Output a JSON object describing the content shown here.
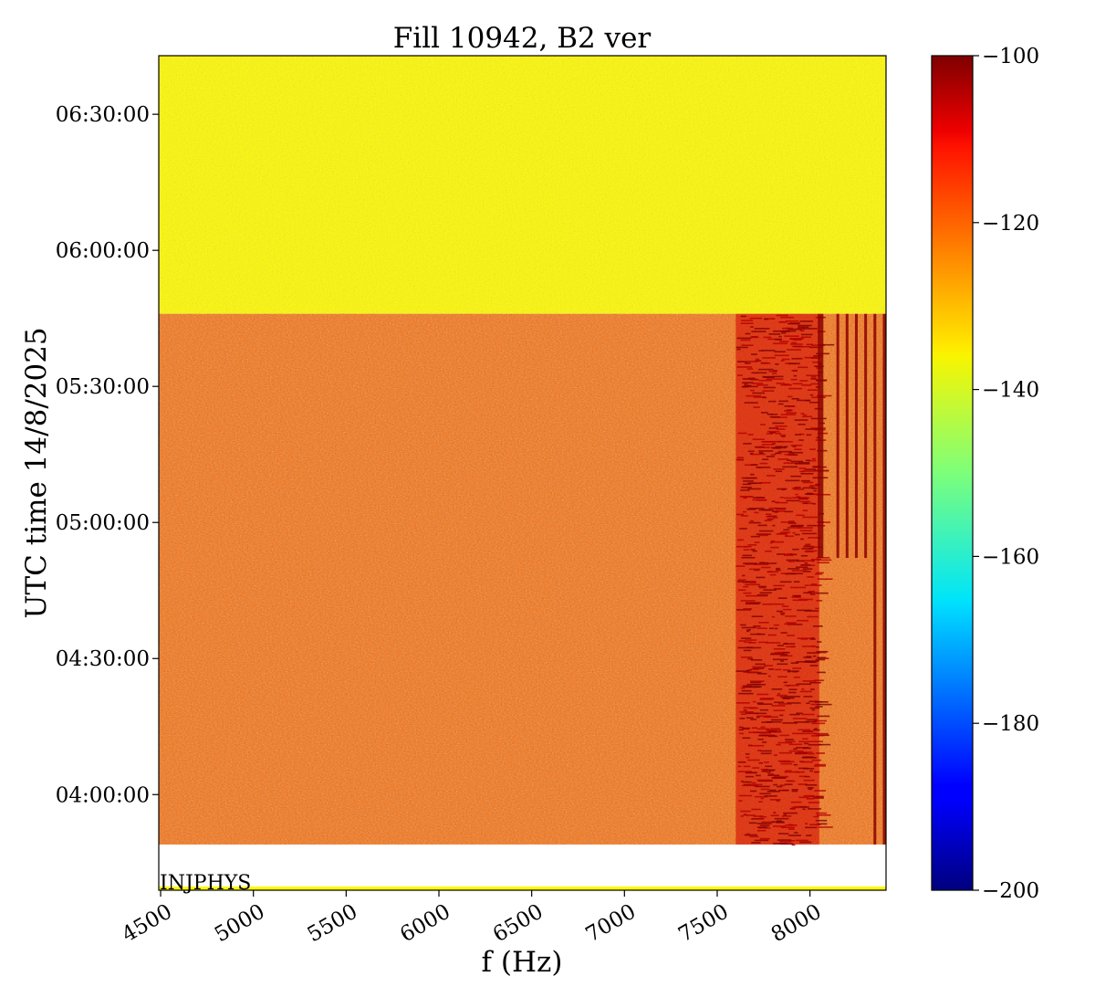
{
  "chart_data": {
    "type": "heatmap",
    "title": "Fill 10942, B2 ver",
    "xlabel": "f (Hz)",
    "ylabel": "UTC time 14/8/2025",
    "xlim": [
      4490,
      8410
    ],
    "x_ticks": [
      "4500",
      "5000",
      "5500",
      "6000",
      "6500",
      "7000",
      "7500",
      "8000"
    ],
    "x_tick_values": [
      4500,
      5000,
      5500,
      6000,
      6500,
      7000,
      7500,
      8000
    ],
    "ylim_seconds_of_day": [
      13135,
      24175
    ],
    "y_ticks": [
      "04:00:00",
      "04:30:00",
      "05:00:00",
      "05:30:00",
      "06:00:00",
      "06:30:00"
    ],
    "y_tick_values": [
      "04:00:00",
      "04:30:00",
      "05:00:00",
      "05:30:00",
      "06:00:00",
      "06:30:00"
    ],
    "colorbar": {
      "colormap": "jet",
      "range": [
        -200,
        -100
      ],
      "ticks": [
        "−100",
        "−120",
        "−140",
        "−160",
        "−180",
        "−200"
      ],
      "tick_values": [
        -100,
        -120,
        -140,
        -160,
        -180,
        -200
      ]
    },
    "regions": [
      {
        "time_range": [
          "05:46:00",
          "06:44:00"
        ],
        "level_dB": -137
      },
      {
        "time_range": [
          "03:49:00",
          "05:46:00"
        ],
        "level_dB": -123
      }
    ],
    "features": [
      {
        "kind": "strong-band",
        "freq_range_hz": [
          7600,
          8050
        ],
        "level_dB": -108
      },
      {
        "kind": "lines",
        "freq_hz": [
          8050,
          8150,
          8200,
          8250,
          8300,
          8350,
          8400
        ],
        "level_dB": -110
      }
    ],
    "annotation": "INJPHYS",
    "grid": false
  }
}
